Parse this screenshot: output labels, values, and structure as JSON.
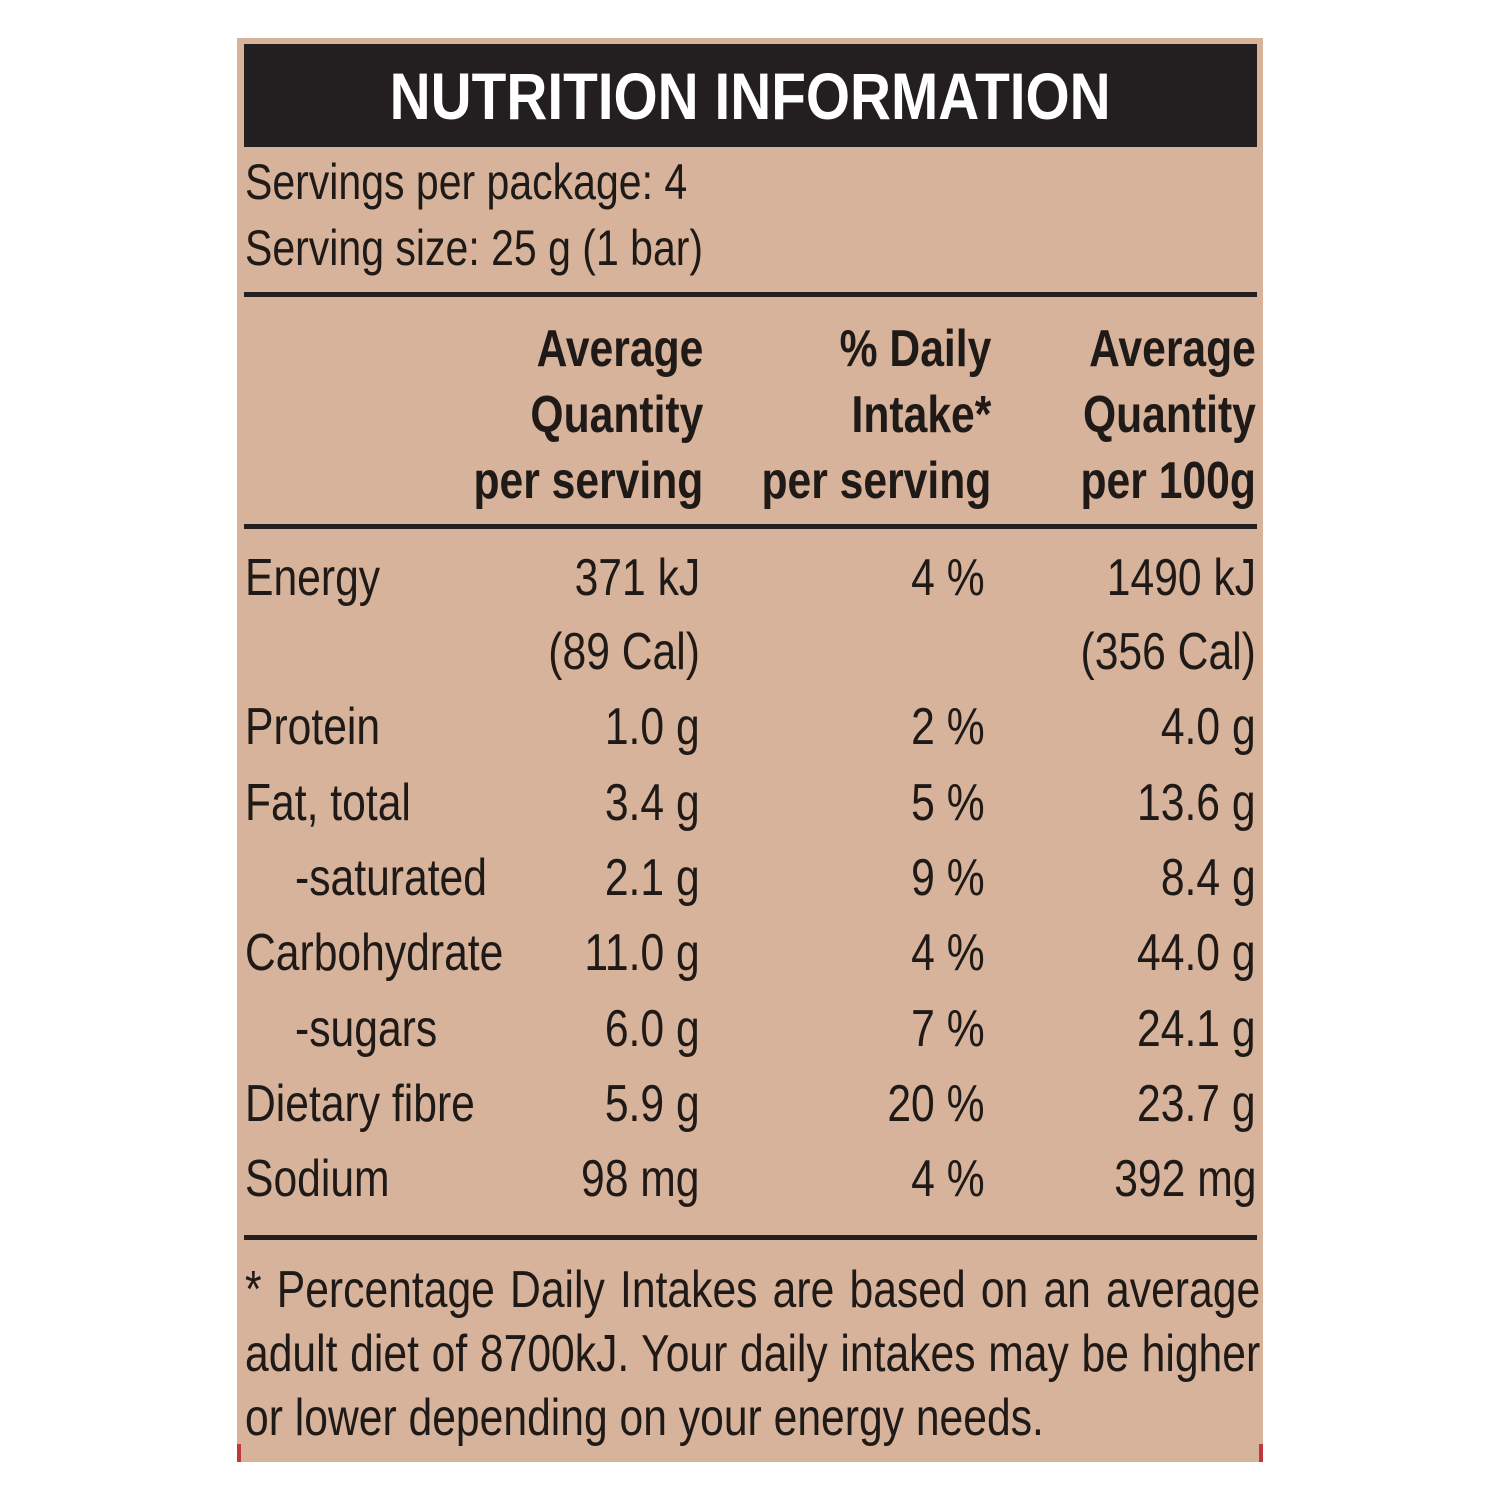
{
  "title": "NUTRITION INFORMATION",
  "servings_per_package": "Servings per package: 4",
  "serving_size": "Serving size: 25 g (1 bar)",
  "columns": {
    "per_serving": [
      "Average",
      "Quantity",
      "per serving"
    ],
    "daily_intake": [
      "% Daily",
      "Intake*",
      "per serving"
    ],
    "per_100g": [
      "Average",
      "Quantity",
      "per 100g"
    ]
  },
  "rows": [
    {
      "name": "Energy",
      "per_serving": "371 kJ",
      "daily_intake": "4 %",
      "per_100g": "1490 kJ"
    },
    {
      "name": "",
      "per_serving": "(89 Cal)",
      "daily_intake": "",
      "per_100g": "(356 Cal)"
    },
    {
      "name": "Protein",
      "per_serving": "1.0 g",
      "daily_intake": "2 %",
      "per_100g": "4.0 g"
    },
    {
      "name": "Fat, total",
      "per_serving": "3.4 g",
      "daily_intake": "5 %",
      "per_100g": "13.6 g"
    },
    {
      "name": "-saturated",
      "per_serving": "2.1 g",
      "daily_intake": "9 %",
      "per_100g": "8.4 g"
    },
    {
      "name": "Carbohydrate",
      "per_serving": "11.0 g",
      "daily_intake": "4 %",
      "per_100g": "44.0 g"
    },
    {
      "name": "-sugars",
      "per_serving": "6.0 g",
      "daily_intake": "7 %",
      "per_100g": "24.1 g"
    },
    {
      "name": "Dietary fibre",
      "per_serving": "5.9 g",
      "daily_intake": "20 %",
      "per_100g": "23.7 g"
    },
    {
      "name": "Sodium",
      "per_serving": "98 mg",
      "daily_intake": "4 %",
      "per_100g": "392 mg"
    }
  ],
  "footnote": "* Percentage Daily Intakes are based on an average adult diet of 8700kJ. Your daily intakes may be higher or lower depending on your energy needs.",
  "colors": {
    "panel_background": "#d6b39a",
    "title_bar": "#231f20",
    "text": "#1f1a17",
    "edge_accent": "#c2363e"
  }
}
